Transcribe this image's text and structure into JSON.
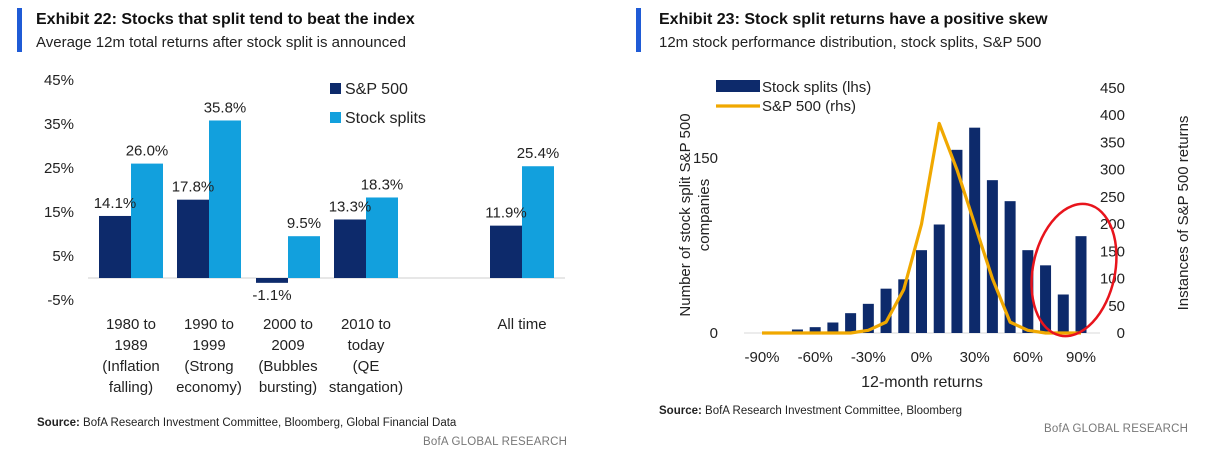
{
  "exhibit22": {
    "title": "Exhibit 22: Stocks that split tend to beat the index",
    "subtitle": "Average 12m total returns after stock split is announced",
    "source_label": "Source:",
    "source_text": " BofA Research Investment Committee, Bloomberg, Global Financial Data",
    "brand": "BofA GLOBAL RESEARCH"
  },
  "exhibit23": {
    "title": "Exhibit 23: Stock split returns have a positive skew",
    "subtitle": "12m stock performance distribution, stock splits, S&P 500",
    "source_label": "Source:",
    "source_text": " BofA Research Investment Committee, Bloomberg",
    "brand": "BofA GLOBAL RESEARCH"
  },
  "chart_data": [
    {
      "type": "bar",
      "title": "Exhibit 22: Stocks that split tend to beat the index",
      "ylim": [
        -5,
        45
      ],
      "yticks": [
        "45%",
        "35%",
        "25%",
        "15%",
        "5%",
        "-5%"
      ],
      "yticks_values": [
        45,
        35,
        25,
        15,
        5,
        -5
      ],
      "legend_position": "top-right",
      "categories": [
        [
          "1980 to",
          "1989",
          "(Inflation",
          "falling)"
        ],
        [
          "1990 to",
          "1999",
          "(Strong",
          "economy)"
        ],
        [
          "2000 to",
          "2009",
          "(Bubbles",
          "bursting)"
        ],
        [
          "2010 to",
          "today",
          "(QE",
          "stangation)"
        ],
        [
          "All time"
        ]
      ],
      "series": [
        {
          "name": "S&P 500",
          "color": "#0d2a6b",
          "values": [
            14.1,
            17.8,
            -1.1,
            13.3,
            11.9
          ],
          "labels": [
            "14.1%",
            "17.8%",
            "-1.1%",
            "13.3%",
            "11.9%"
          ]
        },
        {
          "name": "Stock splits",
          "color": "#12a0dd",
          "values": [
            26.0,
            35.8,
            9.5,
            18.3,
            25.4
          ],
          "labels": [
            "26.0%",
            "35.8%",
            "9.5%",
            "18.3%",
            "25.4%"
          ]
        }
      ]
    },
    {
      "type": "bar",
      "title": "Exhibit 23: Stock split returns have a positive skew",
      "xlabel": "12-month returns",
      "ylabel": "Number of stock split S&P 500 companies",
      "y2label": "Instances of S&P 500 returns",
      "x_range": [
        -100,
        100
      ],
      "xticks": [
        -90,
        -60,
        -30,
        0,
        30,
        60,
        90
      ],
      "xtick_labels": [
        "-90%",
        "-60%",
        "-30%",
        "0%",
        "30%",
        "60%",
        "90%"
      ],
      "ylim": [
        0,
        180
      ],
      "yticks": [
        0,
        150
      ],
      "yticks_labels": [
        "0",
        "150"
      ],
      "y2lim": [
        0,
        450
      ],
      "y2ticks": [
        0,
        50,
        100,
        150,
        200,
        250,
        300,
        350,
        400,
        450
      ],
      "y2ticks_labels": [
        "0",
        "50",
        "100",
        "150",
        "200",
        "250",
        "300",
        "350",
        "400",
        "450"
      ],
      "legend_position": "top-left",
      "series": [
        {
          "name": "Stock splits (lhs)",
          "type": "bar",
          "color": "#0d2a6b",
          "x": [
            -90,
            -80,
            -70,
            -60,
            -50,
            -40,
            -30,
            -20,
            -10,
            0,
            10,
            20,
            30,
            40,
            50,
            60,
            70,
            80,
            90
          ],
          "values": [
            0,
            1,
            3,
            5,
            9,
            17,
            25,
            38,
            46,
            71,
            93,
            157,
            176,
            131,
            113,
            71,
            58,
            33,
            83
          ]
        },
        {
          "name": "S&P 500 (rhs)",
          "type": "line",
          "color": "#f0a800",
          "x": [
            -90,
            -80,
            -70,
            -60,
            -50,
            -40,
            -30,
            -20,
            -10,
            0,
            10,
            20,
            30,
            40,
            50,
            60,
            70,
            80,
            90
          ],
          "values": [
            0,
            0,
            0,
            0,
            0,
            0,
            5,
            20,
            80,
            200,
            385,
            300,
            200,
            100,
            20,
            5,
            0,
            0,
            0
          ]
        }
      ],
      "annotation": "red circle highlighting right tail (60% to 90% returns)"
    }
  ]
}
